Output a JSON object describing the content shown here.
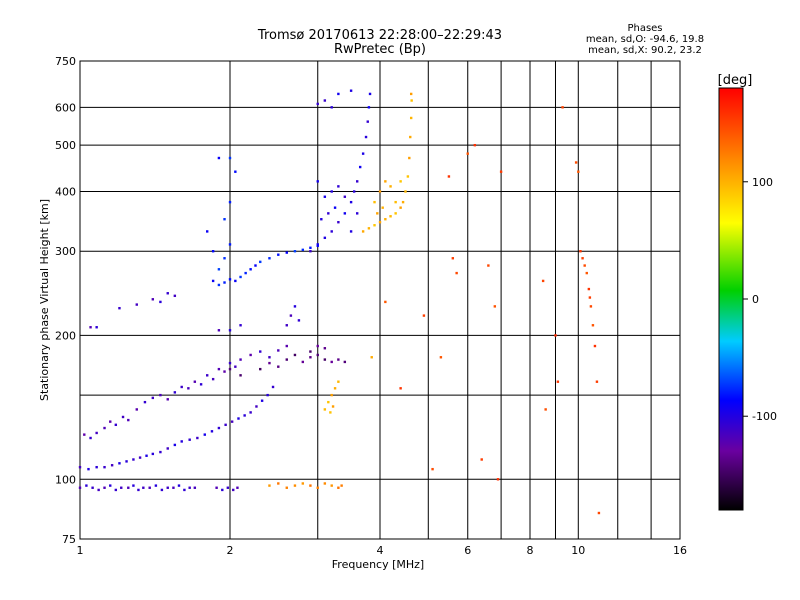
{
  "chart_data": {
    "type": "scatter",
    "title": "Tromsø 20170613 22:28:00–22:29:43",
    "subtitle": "RwPretec (Bp)",
    "stats": {
      "heading": "Phases",
      "line1": "mean, sd,O:  -94.6, 19.8",
      "line2": "mean, sd,X:  90.2, 23.2"
    },
    "xlabel": "Frequency [MHz]",
    "ylabel": "Stationary phase Virtual Height [km]",
    "x_scale": "log",
    "y_scale": "log",
    "xlim": [
      1,
      16
    ],
    "ylim": [
      75,
      750
    ],
    "x_ticks": [
      1,
      2,
      4,
      6,
      8,
      10,
      16
    ],
    "x_minor_ticks": [
      3,
      5,
      7,
      9,
      12,
      14
    ],
    "y_ticks": [
      75,
      100,
      200,
      300,
      400,
      500,
      600,
      750
    ],
    "y_minor_ticks": [
      150
    ],
    "grid": true,
    "colorbar": {
      "label": "[deg]",
      "ticks": [
        100,
        0,
        -100
      ],
      "range": [
        -180,
        180
      ]
    },
    "series": [
      {
        "points": [
          [
            1.0,
            96
          ],
          [
            1.03,
            97
          ],
          [
            1.06,
            96
          ],
          [
            1.09,
            95
          ],
          [
            1.12,
            96
          ],
          [
            1.15,
            97
          ],
          [
            1.18,
            95
          ],
          [
            1.21,
            96
          ],
          [
            1.25,
            96
          ],
          [
            1.28,
            97
          ],
          [
            1.31,
            95
          ],
          [
            1.34,
            96
          ],
          [
            1.38,
            96
          ],
          [
            1.42,
            97
          ],
          [
            1.46,
            95
          ],
          [
            1.5,
            96
          ],
          [
            1.54,
            96
          ],
          [
            1.58,
            97
          ],
          [
            1.62,
            95
          ],
          [
            1.66,
            96
          ],
          [
            1.7,
            96
          ],
          [
            1.88,
            96
          ],
          [
            1.93,
            95
          ],
          [
            1.98,
            96
          ],
          [
            2.03,
            95
          ],
          [
            2.07,
            96
          ]
        ],
        "phase": -110
      },
      {
        "points": [
          [
            1.0,
            106
          ],
          [
            1.04,
            105
          ],
          [
            1.08,
            106
          ],
          [
            1.12,
            106
          ],
          [
            1.16,
            107
          ],
          [
            1.2,
            108
          ],
          [
            1.24,
            109
          ],
          [
            1.28,
            110
          ],
          [
            1.32,
            111
          ],
          [
            1.36,
            112
          ],
          [
            1.4,
            113
          ],
          [
            1.45,
            114
          ],
          [
            1.5,
            116
          ],
          [
            1.55,
            118
          ],
          [
            1.6,
            120
          ],
          [
            1.66,
            121
          ],
          [
            1.72,
            122
          ],
          [
            1.78,
            124
          ],
          [
            1.84,
            126
          ],
          [
            1.9,
            128
          ],
          [
            1.96,
            130
          ],
          [
            2.02,
            132
          ],
          [
            2.08,
            134
          ],
          [
            2.14,
            136
          ],
          [
            2.2,
            138
          ],
          [
            2.26,
            142
          ],
          [
            2.32,
            146
          ],
          [
            2.38,
            150
          ],
          [
            2.44,
            156
          ]
        ],
        "phase": -105
      },
      {
        "points": [
          [
            1.02,
            124
          ],
          [
            1.05,
            122
          ],
          [
            1.08,
            125
          ],
          [
            1.12,
            128
          ],
          [
            1.15,
            132
          ],
          [
            1.18,
            130
          ],
          [
            1.22,
            135
          ],
          [
            1.25,
            133
          ],
          [
            1.3,
            140
          ],
          [
            1.35,
            145
          ],
          [
            1.4,
            148
          ],
          [
            1.45,
            150
          ],
          [
            1.5,
            147
          ],
          [
            1.55,
            152
          ],
          [
            1.6,
            156
          ],
          [
            1.65,
            155
          ],
          [
            1.7,
            160
          ],
          [
            1.75,
            158
          ],
          [
            1.8,
            165
          ],
          [
            1.85,
            162
          ],
          [
            1.9,
            170
          ],
          [
            1.95,
            168
          ],
          [
            2.0,
            175
          ],
          [
            2.05,
            172
          ],
          [
            2.1,
            178
          ],
          [
            2.2,
            182
          ],
          [
            2.3,
            185
          ],
          [
            2.4,
            180
          ],
          [
            2.5,
            186
          ],
          [
            2.6,
            190
          ]
        ],
        "phase": -115
      },
      {
        "points": [
          [
            1.05,
            208
          ],
          [
            1.08,
            208
          ],
          [
            1.2,
            228
          ],
          [
            1.3,
            232
          ],
          [
            1.4,
            238
          ],
          [
            1.45,
            235
          ],
          [
            1.5,
            245
          ],
          [
            1.55,
            242
          ],
          [
            1.9,
            205
          ],
          [
            2.0,
            205
          ],
          [
            2.1,
            210
          ],
          [
            2.6,
            210
          ],
          [
            2.65,
            220
          ],
          [
            2.7,
            230
          ],
          [
            2.75,
            215
          ]
        ],
        "phase": -110
      },
      {
        "points": [
          [
            1.85,
            260
          ],
          [
            1.9,
            255
          ],
          [
            1.95,
            258
          ],
          [
            2.0,
            262
          ],
          [
            2.05,
            260
          ],
          [
            2.1,
            265
          ],
          [
            2.15,
            270
          ],
          [
            2.2,
            275
          ],
          [
            2.25,
            280
          ],
          [
            2.3,
            285
          ],
          [
            2.4,
            290
          ],
          [
            2.5,
            295
          ],
          [
            2.6,
            298
          ],
          [
            2.7,
            300
          ],
          [
            2.8,
            302
          ],
          [
            2.9,
            305
          ],
          [
            3.0,
            308
          ],
          [
            1.9,
            275
          ],
          [
            1.95,
            290
          ],
          [
            2.0,
            310
          ],
          [
            1.85,
            300
          ],
          [
            1.8,
            330
          ],
          [
            1.95,
            350
          ],
          [
            2.0,
            380
          ],
          [
            2.05,
            440
          ],
          [
            1.9,
            470
          ],
          [
            2.0,
            470
          ]
        ],
        "phase": -80
      },
      {
        "points": [
          [
            2.9,
            300
          ],
          [
            3.0,
            310
          ],
          [
            3.1,
            320
          ],
          [
            3.2,
            330
          ],
          [
            3.3,
            345
          ],
          [
            3.4,
            360
          ],
          [
            3.5,
            380
          ],
          [
            3.55,
            400
          ],
          [
            3.6,
            420
          ],
          [
            3.65,
            450
          ],
          [
            3.7,
            480
          ],
          [
            3.75,
            520
          ],
          [
            3.78,
            560
          ],
          [
            3.8,
            600
          ],
          [
            3.82,
            640
          ],
          [
            3.05,
            350
          ],
          [
            3.15,
            360
          ],
          [
            3.25,
            370
          ],
          [
            3.1,
            390
          ],
          [
            3.2,
            400
          ],
          [
            3.3,
            410
          ],
          [
            3.4,
            390
          ],
          [
            3.0,
            420
          ],
          [
            3.5,
            330
          ],
          [
            3.6,
            360
          ],
          [
            3.1,
            620
          ],
          [
            3.3,
            640
          ],
          [
            3.5,
            650
          ],
          [
            3.2,
            600
          ],
          [
            3.0,
            610
          ]
        ],
        "phase": -100
      },
      {
        "points": [
          [
            2.3,
            170
          ],
          [
            2.4,
            175
          ],
          [
            2.5,
            172
          ],
          [
            2.6,
            178
          ],
          [
            2.7,
            182
          ],
          [
            2.8,
            176
          ],
          [
            2.9,
            180
          ],
          [
            3.0,
            182
          ],
          [
            3.1,
            178
          ],
          [
            3.2,
            176
          ],
          [
            3.3,
            178
          ],
          [
            3.4,
            176
          ],
          [
            2.9,
            185
          ],
          [
            3.0,
            190
          ],
          [
            3.1,
            188
          ],
          [
            2.0,
            170
          ],
          [
            2.1,
            165
          ]
        ],
        "phase": -140
      },
      {
        "points": [
          [
            3.9,
            340
          ],
          [
            4.0,
            345
          ],
          [
            4.1,
            350
          ],
          [
            4.2,
            355
          ],
          [
            4.3,
            360
          ],
          [
            4.4,
            370
          ],
          [
            4.45,
            380
          ],
          [
            4.5,
            400
          ],
          [
            4.55,
            430
          ],
          [
            4.58,
            470
          ],
          [
            4.6,
            520
          ],
          [
            4.62,
            570
          ],
          [
            4.63,
            620
          ],
          [
            4.62,
            640
          ],
          [
            3.7,
            330
          ],
          [
            3.8,
            335
          ],
          [
            3.9,
            380
          ],
          [
            4.0,
            400
          ],
          [
            4.1,
            420
          ],
          [
            4.2,
            410
          ],
          [
            4.3,
            380
          ],
          [
            4.4,
            420
          ],
          [
            3.95,
            360
          ],
          [
            4.05,
            370
          ],
          [
            3.1,
            140
          ],
          [
            3.15,
            145
          ],
          [
            3.2,
            150
          ],
          [
            3.25,
            155
          ],
          [
            3.3,
            160
          ],
          [
            3.18,
            138
          ],
          [
            3.22,
            142
          ],
          [
            3.85,
            180
          ]
        ],
        "phase": 100
      },
      {
        "points": [
          [
            2.4,
            97
          ],
          [
            2.5,
            98
          ],
          [
            2.6,
            96
          ],
          [
            2.7,
            97
          ],
          [
            2.8,
            98
          ],
          [
            2.9,
            97
          ],
          [
            3.0,
            96
          ],
          [
            3.1,
            98
          ],
          [
            3.2,
            97
          ],
          [
            3.3,
            96
          ],
          [
            3.35,
            97
          ]
        ],
        "phase": 120
      },
      {
        "points": [
          [
            4.1,
            235
          ],
          [
            4.4,
            155
          ],
          [
            4.9,
            220
          ],
          [
            5.1,
            105
          ],
          [
            5.3,
            180
          ],
          [
            5.5,
            430
          ],
          [
            5.6,
            290
          ],
          [
            5.7,
            270
          ],
          [
            6.0,
            480
          ],
          [
            6.2,
            500
          ],
          [
            6.4,
            110
          ],
          [
            6.6,
            280
          ],
          [
            6.8,
            230
          ],
          [
            6.9,
            100
          ],
          [
            7.0,
            440
          ],
          [
            8.5,
            260
          ],
          [
            8.6,
            140
          ],
          [
            9.0,
            200
          ],
          [
            9.1,
            160
          ],
          [
            9.3,
            600
          ],
          [
            9.9,
            460
          ],
          [
            10.0,
            440
          ],
          [
            10.1,
            300
          ],
          [
            10.2,
            290
          ],
          [
            10.3,
            280
          ],
          [
            10.4,
            270
          ],
          [
            10.5,
            250
          ],
          [
            10.55,
            240
          ],
          [
            10.6,
            230
          ],
          [
            10.7,
            210
          ],
          [
            10.8,
            190
          ],
          [
            10.9,
            160
          ],
          [
            11.0,
            85
          ]
        ],
        "phase": 150
      }
    ]
  }
}
